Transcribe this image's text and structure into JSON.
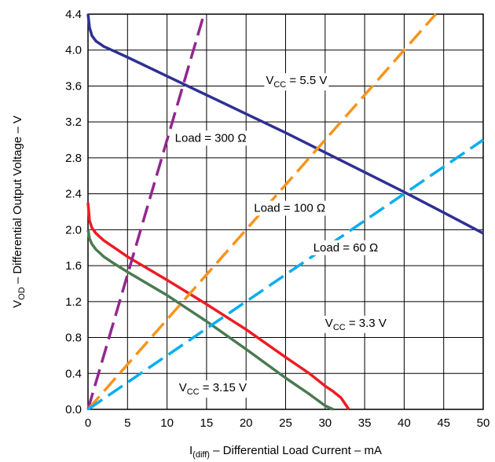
{
  "chart_data": {
    "type": "line",
    "title": "",
    "xlabel": {
      "main": "I",
      "sub": "(diff)",
      "rest": " – Differential Load Current – mA"
    },
    "ylabel": {
      "main": "V",
      "sub": "OD",
      "rest": " – Differential Output Voltage – V"
    },
    "xlim": [
      0,
      50
    ],
    "ylim": [
      0,
      4.4
    ],
    "x_ticks": [
      "0",
      "5",
      "10",
      "15",
      "20",
      "25",
      "30",
      "35",
      "40",
      "45",
      "50"
    ],
    "y_ticks": [
      "0.0",
      "0.4",
      "0.8",
      "1.2",
      "1.6",
      "2.0",
      "2.4",
      "2.8",
      "3.2",
      "3.6",
      "4.0",
      "4.4"
    ],
    "grid": true,
    "colors": {
      "vcc55": "#2e3192",
      "vcc33": "#ed1c24",
      "vcc315": "#4c7a52",
      "load300": "#92278f",
      "load100": "#f7941d",
      "load60": "#00aeef",
      "grid": "#000000"
    },
    "series": [
      {
        "name": "VCC = 5.5 V",
        "style": "solid",
        "color_key": "vcc55",
        "x": [
          0,
          0.2,
          0.5,
          1,
          2,
          3,
          5,
          10,
          15,
          20,
          25,
          30,
          35,
          40,
          45,
          50
        ],
        "y": [
          4.4,
          4.25,
          4.16,
          4.1,
          4.04,
          4.0,
          3.92,
          3.71,
          3.5,
          3.29,
          3.08,
          2.86,
          2.64,
          2.42,
          2.19,
          1.96
        ]
      },
      {
        "name": "VCC = 3.3 V",
        "style": "solid",
        "color_key": "vcc33",
        "x": [
          0,
          0.2,
          0.5,
          1,
          2,
          3,
          5,
          10,
          15,
          20,
          25,
          28,
          30,
          31,
          32,
          33
        ],
        "y": [
          2.3,
          2.1,
          2.02,
          1.96,
          1.88,
          1.82,
          1.7,
          1.44,
          1.17,
          0.89,
          0.58,
          0.4,
          0.26,
          0.2,
          0.13,
          0.0
        ]
      },
      {
        "name": "VCC = 3.15 V",
        "style": "solid",
        "color_key": "vcc315",
        "x": [
          0,
          0.2,
          0.5,
          1,
          2,
          3,
          5,
          10,
          15,
          20,
          25,
          28,
          30,
          31
        ],
        "y": [
          2.0,
          1.9,
          1.84,
          1.78,
          1.7,
          1.64,
          1.53,
          1.27,
          0.98,
          0.67,
          0.35,
          0.17,
          0.04,
          0.0
        ]
      },
      {
        "name": "Load = 300 Ω",
        "style": "dashed",
        "color_key": "load300",
        "x": [
          0,
          14.67
        ],
        "y": [
          0,
          4.4
        ]
      },
      {
        "name": "Load = 100 Ω",
        "style": "dashed",
        "color_key": "load100",
        "x": [
          0,
          44
        ],
        "y": [
          0,
          4.4
        ]
      },
      {
        "name": "Load = 60 Ω",
        "style": "dashed",
        "color_key": "load60",
        "x": [
          0,
          50
        ],
        "y": [
          0,
          3.0
        ]
      }
    ],
    "annotations": [
      {
        "kind": "vcc",
        "sub": "CC",
        "value": " = 5.5 V",
        "x": 22.5,
        "y": 3.62
      },
      {
        "kind": "load",
        "text": "Load = 300 Ω",
        "x": 11.0,
        "y": 2.98
      },
      {
        "kind": "load",
        "text": "Load = 100 Ω",
        "x": 21.0,
        "y": 2.2
      },
      {
        "kind": "load",
        "text": "Load = 60 Ω",
        "x": 28.5,
        "y": 1.76
      },
      {
        "kind": "vcc",
        "sub": "CC",
        "value": " = 3.3 V",
        "x": 30.0,
        "y": 0.92
      },
      {
        "kind": "vcc",
        "sub": "CC",
        "value": " = 3.15 V",
        "x": 11.5,
        "y": 0.2
      }
    ]
  }
}
